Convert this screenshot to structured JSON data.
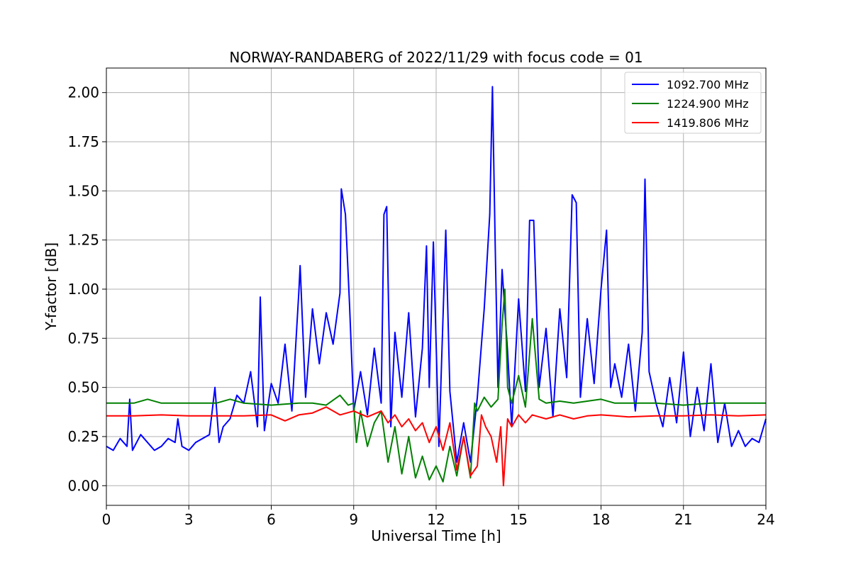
{
  "chart_data": {
    "type": "line",
    "title": "NORWAY-RANDABERG of 2022/11/29 with focus code = 01",
    "xlabel": "Universal Time [h]",
    "ylabel": "Y-factor [dB]",
    "xlim": [
      0,
      24
    ],
    "ylim": [
      -0.1,
      2.125
    ],
    "xticks": [
      "0",
      "3",
      "6",
      "9",
      "12",
      "15",
      "18",
      "21",
      "24"
    ],
    "yticks": [
      "0.00",
      "0.25",
      "0.50",
      "0.75",
      "1.00",
      "1.25",
      "1.50",
      "1.75",
      "2.00"
    ],
    "grid": true,
    "legend_position": "top-right",
    "series": [
      {
        "name": "1092.700 MHz",
        "color": "#0000ff",
        "x": [
          0,
          0.25,
          0.5,
          0.75,
          0.85,
          0.95,
          1.25,
          1.5,
          1.75,
          2.0,
          2.25,
          2.5,
          2.6,
          2.75,
          3.0,
          3.25,
          3.5,
          3.75,
          3.95,
          4.1,
          4.25,
          4.5,
          4.75,
          5.0,
          5.25,
          5.5,
          5.6,
          5.75,
          6.0,
          6.25,
          6.5,
          6.75,
          7.0,
          7.05,
          7.25,
          7.5,
          7.75,
          8.0,
          8.25,
          8.5,
          8.55,
          8.7,
          8.85,
          9.0,
          9.25,
          9.5,
          9.75,
          10.0,
          10.1,
          10.2,
          10.35,
          10.5,
          10.75,
          11.0,
          11.25,
          11.5,
          11.65,
          11.75,
          11.9,
          12.1,
          12.35,
          12.5,
          12.75,
          13.0,
          13.25,
          13.5,
          13.75,
          13.95,
          14.05,
          14.15,
          14.25,
          14.4,
          14.6,
          14.75,
          15.0,
          15.25,
          15.4,
          15.55,
          15.75,
          16.0,
          16.25,
          16.5,
          16.75,
          16.95,
          17.1,
          17.25,
          17.5,
          17.75,
          18.0,
          18.2,
          18.35,
          18.5,
          18.75,
          19.0,
          19.25,
          19.5,
          19.6,
          19.75,
          20.0,
          20.25,
          20.5,
          20.75,
          21.0,
          21.25,
          21.5,
          21.75,
          22.0,
          22.25,
          22.5,
          22.75,
          23.0,
          23.25,
          23.5,
          23.75,
          24.0
        ],
        "y": [
          0.2,
          0.18,
          0.24,
          0.2,
          0.44,
          0.18,
          0.26,
          0.22,
          0.18,
          0.2,
          0.24,
          0.22,
          0.34,
          0.2,
          0.18,
          0.22,
          0.24,
          0.26,
          0.5,
          0.22,
          0.3,
          0.34,
          0.46,
          0.42,
          0.58,
          0.3,
          0.96,
          0.28,
          0.52,
          0.42,
          0.72,
          0.38,
          0.98,
          1.12,
          0.45,
          0.9,
          0.62,
          0.88,
          0.72,
          0.98,
          1.51,
          1.38,
          0.92,
          0.38,
          0.58,
          0.36,
          0.7,
          0.42,
          1.38,
          1.42,
          0.3,
          0.78,
          0.45,
          0.88,
          0.35,
          0.7,
          1.22,
          0.5,
          1.24,
          0.2,
          1.3,
          0.48,
          0.12,
          0.32,
          0.12,
          0.45,
          0.9,
          1.38,
          2.03,
          1.22,
          0.5,
          1.1,
          0.68,
          0.3,
          0.95,
          0.48,
          1.35,
          1.35,
          0.5,
          0.8,
          0.35,
          0.9,
          0.55,
          1.48,
          1.44,
          0.45,
          0.85,
          0.52,
          1.0,
          1.3,
          0.5,
          0.62,
          0.45,
          0.72,
          0.38,
          0.78,
          1.56,
          0.58,
          0.42,
          0.3,
          0.55,
          0.32,
          0.68,
          0.25,
          0.5,
          0.28,
          0.62,
          0.22,
          0.42,
          0.2,
          0.28,
          0.2,
          0.24,
          0.22,
          0.34
        ]
      },
      {
        "name": "1224.900 MHz",
        "color": "#008000",
        "x": [
          0,
          1.0,
          1.5,
          2.0,
          3.0,
          4.0,
          4.5,
          5.0,
          6.0,
          7.0,
          7.5,
          8.0,
          8.5,
          8.8,
          9.0,
          9.1,
          9.25,
          9.5,
          9.75,
          10.0,
          10.25,
          10.5,
          10.75,
          11.0,
          11.25,
          11.5,
          11.75,
          12.0,
          12.25,
          12.5,
          12.75,
          13.0,
          13.25,
          13.4,
          13.5,
          13.75,
          14.0,
          14.25,
          14.4,
          14.5,
          14.6,
          14.75,
          15.0,
          15.25,
          15.5,
          15.75,
          16.0,
          16.5,
          17.0,
          17.5,
          18.0,
          18.5,
          19.0,
          20.0,
          21.0,
          22.0,
          22.5,
          23.0,
          24.0
        ],
        "y": [
          0.42,
          0.42,
          0.44,
          0.42,
          0.42,
          0.42,
          0.44,
          0.42,
          0.41,
          0.42,
          0.42,
          0.41,
          0.46,
          0.41,
          0.42,
          0.22,
          0.38,
          0.2,
          0.32,
          0.38,
          0.12,
          0.3,
          0.06,
          0.25,
          0.04,
          0.15,
          0.03,
          0.1,
          0.02,
          0.2,
          0.05,
          0.25,
          0.04,
          0.42,
          0.38,
          0.45,
          0.4,
          0.44,
          0.82,
          1.0,
          0.5,
          0.42,
          0.56,
          0.4,
          0.85,
          0.44,
          0.42,
          0.43,
          0.42,
          0.43,
          0.44,
          0.42,
          0.42,
          0.42,
          0.41,
          0.42,
          0.42,
          0.42,
          0.42
        ]
      },
      {
        "name": "1419.806 MHz",
        "color": "#ff0000",
        "x": [
          0,
          1.0,
          2.0,
          3.0,
          4.0,
          5.0,
          6.0,
          6.5,
          7.0,
          7.5,
          8.0,
          8.5,
          9.0,
          9.5,
          10.0,
          10.25,
          10.5,
          10.75,
          11.0,
          11.25,
          11.5,
          11.75,
          12.0,
          12.25,
          12.5,
          12.75,
          13.0,
          13.25,
          13.5,
          13.65,
          13.8,
          14.0,
          14.2,
          14.35,
          14.45,
          14.6,
          14.75,
          15.0,
          15.25,
          15.5,
          16.0,
          16.5,
          17.0,
          17.5,
          18.0,
          18.5,
          19.0,
          20.0,
          21.0,
          22.0,
          23.0,
          24.0
        ],
        "y": [
          0.355,
          0.355,
          0.36,
          0.355,
          0.355,
          0.355,
          0.36,
          0.33,
          0.36,
          0.37,
          0.4,
          0.36,
          0.38,
          0.35,
          0.38,
          0.32,
          0.36,
          0.3,
          0.34,
          0.28,
          0.32,
          0.22,
          0.3,
          0.18,
          0.32,
          0.08,
          0.25,
          0.05,
          0.1,
          0.36,
          0.3,
          0.25,
          0.12,
          0.3,
          0.0,
          0.34,
          0.3,
          0.36,
          0.32,
          0.36,
          0.34,
          0.36,
          0.34,
          0.355,
          0.36,
          0.355,
          0.35,
          0.355,
          0.355,
          0.36,
          0.355,
          0.36
        ]
      }
    ]
  }
}
